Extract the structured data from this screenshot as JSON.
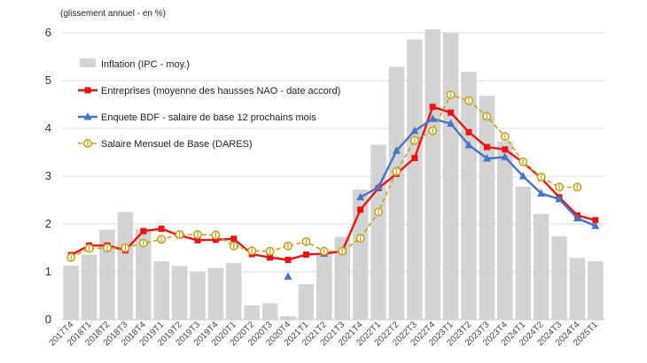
{
  "chart_data": {
    "type": "bar+line",
    "unit_label": "(glissement annuel - en %)",
    "categories": [
      "2017T4",
      "2018T1",
      "2018T2",
      "2018T3",
      "2018T4",
      "2019T1",
      "2019T2",
      "2019T3",
      "2019T4",
      "2020T1",
      "2020T2",
      "2020T3",
      "2020T4",
      "2021T1",
      "2021T2",
      "2021T3",
      "2021T4",
      "2022T1",
      "2022T2",
      "2022T3",
      "2022T4",
      "2023T1",
      "2023T2",
      "2023T3",
      "2023T4",
      "2024T1",
      "2024T2",
      "2024T3",
      "2024T4",
      "2025T1"
    ],
    "ylim": [
      0,
      6
    ],
    "yticks": [
      0,
      1,
      2,
      3,
      4,
      5,
      6
    ],
    "grid": true,
    "legend_position": "top-left",
    "series": [
      {
        "name": "Inflation (IPC - moy.)",
        "kind": "bar",
        "color": "#d3d3d3",
        "values": [
          1.13,
          1.36,
          1.88,
          2.25,
          1.9,
          1.22,
          1.12,
          1.0,
          1.08,
          1.18,
          0.3,
          0.34,
          0.07,
          0.74,
          1.39,
          1.73,
          2.72,
          3.66,
          5.29,
          5.86,
          6.07,
          6.0,
          5.18,
          4.68,
          3.73,
          2.78,
          2.21,
          1.74,
          1.29,
          1.22
        ]
      },
      {
        "name": "Entreprises (moyenne des hausses NAO - date accord)",
        "kind": "line",
        "marker": "square",
        "color": "#ee1111",
        "values": [
          1.35,
          1.55,
          1.55,
          1.45,
          1.85,
          1.9,
          1.76,
          1.66,
          1.67,
          1.69,
          1.37,
          1.3,
          1.25,
          1.36,
          1.38,
          1.43,
          2.3,
          2.75,
          3.05,
          3.38,
          4.45,
          4.33,
          3.92,
          3.61,
          3.56,
          3.29,
          2.96,
          2.56,
          2.18,
          2.08
        ]
      },
      {
        "name": "Enquete BDF - salaire de base 12 prochains mois",
        "kind": "line",
        "marker": "triangle",
        "color": "#4474c4",
        "values": [
          null,
          null,
          null,
          null,
          null,
          null,
          null,
          null,
          null,
          null,
          null,
          null,
          0.9,
          null,
          1.38,
          null,
          2.56,
          2.77,
          3.53,
          3.95,
          4.2,
          4.1,
          3.65,
          3.37,
          3.4,
          3.0,
          2.64,
          2.52,
          2.12,
          1.96
        ]
      },
      {
        "name": "Salaire Mensuel de Base (DARES)",
        "kind": "line",
        "marker": "circle-open",
        "dashed": true,
        "color": "#c8a21e",
        "values": [
          1.3,
          1.49,
          1.5,
          1.5,
          1.6,
          1.68,
          1.78,
          1.78,
          1.77,
          1.54,
          1.44,
          1.43,
          1.54,
          1.63,
          1.43,
          1.43,
          1.7,
          2.25,
          3.1,
          3.75,
          3.95,
          4.7,
          4.58,
          4.25,
          3.83,
          3.3,
          2.98,
          2.77,
          2.77,
          null
        ]
      }
    ]
  }
}
